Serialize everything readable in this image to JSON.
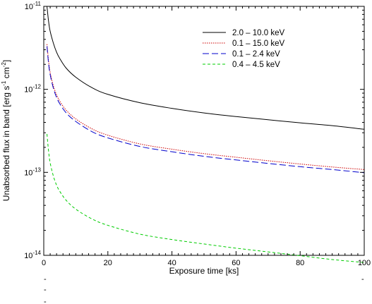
{
  "chart_data": {
    "type": "line",
    "title": "",
    "xlabel": "Exposure time [ks]",
    "ylabel_parts": [
      "Unabsorbed flux in band [erg s",
      "-1",
      " cm",
      "-2",
      "]"
    ],
    "xlim": [
      0,
      100
    ],
    "ylim": [
      1e-14,
      1e-11
    ],
    "yscale": "log",
    "grid": false,
    "legend_position": "top-right",
    "x_ticks": [
      0,
      20,
      40,
      60,
      80,
      100
    ],
    "y_ticks": [
      {
        "value": 1e-14,
        "base": "10",
        "exp": "-14"
      },
      {
        "value": 1e-13,
        "base": "10",
        "exp": "-13"
      },
      {
        "value": 1e-12,
        "base": "10",
        "exp": "-12"
      },
      {
        "value": 1e-11,
        "base": "10",
        "exp": "-11"
      }
    ],
    "x": [
      1,
      1.5,
      2,
      3,
      4,
      5,
      7,
      10,
      15,
      20,
      30,
      40,
      50,
      60,
      70,
      80,
      90,
      100
    ],
    "series": [
      {
        "name": "2.0 – 10.0 keV",
        "color": "#000000",
        "dash": "",
        "values": [
          1e-11,
          6.6e-12,
          5e-12,
          3.6e-12,
          2.8e-12,
          2.35e-12,
          1.8e-12,
          1.4e-12,
          1.05e-12,
          8.7e-13,
          6.9e-13,
          5.9e-13,
          5.2e-13,
          4.7e-13,
          4.3e-13,
          3.95e-13,
          3.65e-13,
          3.3e-13
        ]
      },
      {
        "name": "0.1 – 15.0 keV",
        "color": "#cc0000",
        "dash": "1.5,1.5",
        "values": [
          3.5e-12,
          2.2e-12,
          1.6e-12,
          1.1e-12,
          8.6e-13,
          7.2e-13,
          5.6e-13,
          4.4e-13,
          3.35e-13,
          2.8e-13,
          2.2e-13,
          1.9e-13,
          1.68e-13,
          1.52e-13,
          1.38e-13,
          1.26e-13,
          1.16e-13,
          1.08e-13
        ]
      },
      {
        "name": "0.1 –  2.4 keV",
        "color": "#0000cc",
        "dash": "9,4",
        "values": [
          3.3e-12,
          2.05e-12,
          1.5e-12,
          1.03e-12,
          8e-13,
          6.7e-13,
          5.2e-13,
          4.1e-13,
          3.1e-13,
          2.6e-13,
          2.05e-13,
          1.77e-13,
          1.56e-13,
          1.41e-13,
          1.28e-13,
          1.17e-13,
          1.08e-13,
          9.9e-14
        ]
      },
      {
        "name": "0.4 –  4.5 keV",
        "color": "#00cc00",
        "dash": "4,3",
        "values": [
          2.9e-13,
          1.8e-13,
          1.3e-13,
          9e-14,
          7e-14,
          5.9e-14,
          4.6e-14,
          3.6e-14,
          2.75e-14,
          2.3e-14,
          1.8e-14,
          1.55e-14,
          1.37e-14,
          1.22e-14,
          1.1e-14,
          9.9e-15,
          8.9e-15,
          8.2e-15
        ]
      }
    ]
  },
  "stray_marks": [
    "-",
    "-",
    "-",
    "-"
  ]
}
